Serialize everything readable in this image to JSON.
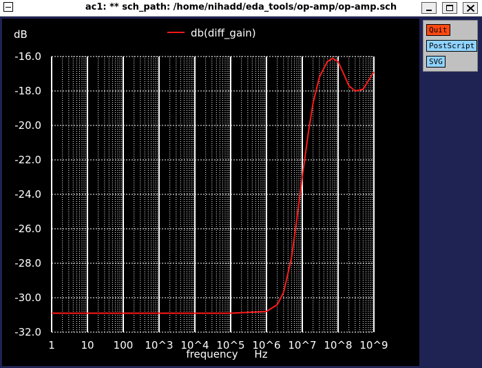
{
  "window": {
    "title": "ac1: ** sch_path: /home/nihadd/eda_tools/op-amp/op-amp.sch"
  },
  "side_buttons": {
    "quit": "Quit",
    "postscript": "PostScript",
    "svg": "SVG"
  },
  "colors": {
    "background": "#000000",
    "grid": "#ffffff",
    "trace": "#ff1a1a",
    "frame": "#1f2354"
  },
  "chart_data": {
    "type": "line",
    "title": "",
    "ylabel": "dB",
    "xlabel": "frequency",
    "xunit": "Hz",
    "xscale": "log",
    "xlim": [
      1,
      1000000000
    ],
    "ylim": [
      -32.0,
      -16.0
    ],
    "x_ticks": [
      "1",
      "10",
      "100",
      "10^3",
      "10^4",
      "10^5",
      "10^6",
      "10^7",
      "10^8",
      "10^9"
    ],
    "y_ticks": [
      "-16.0",
      "-18.0",
      "-20.0",
      "-22.0",
      "-24.0",
      "-26.0",
      "-28.0",
      "-30.0",
      "-32.0"
    ],
    "grid": true,
    "legend": "top-center",
    "series": [
      {
        "name": "db(diff_gain)",
        "x": [
          1,
          10,
          100,
          1000,
          10000,
          100000,
          1000000,
          2000000,
          3000000,
          5000000,
          7000000,
          10000000,
          15000000,
          20000000,
          30000000,
          50000000,
          70000000,
          100000000,
          150000000,
          200000000,
          300000000,
          500000000,
          700000000,
          1000000000
        ],
        "y": [
          -30.9,
          -30.9,
          -30.9,
          -30.9,
          -30.9,
          -30.9,
          -30.8,
          -30.4,
          -29.7,
          -27.7,
          -25.5,
          -23.0,
          -20.3,
          -18.7,
          -17.2,
          -16.3,
          -16.1,
          -16.3,
          -17.1,
          -17.7,
          -18.0,
          -17.9,
          -17.4,
          -16.9
        ]
      }
    ]
  }
}
